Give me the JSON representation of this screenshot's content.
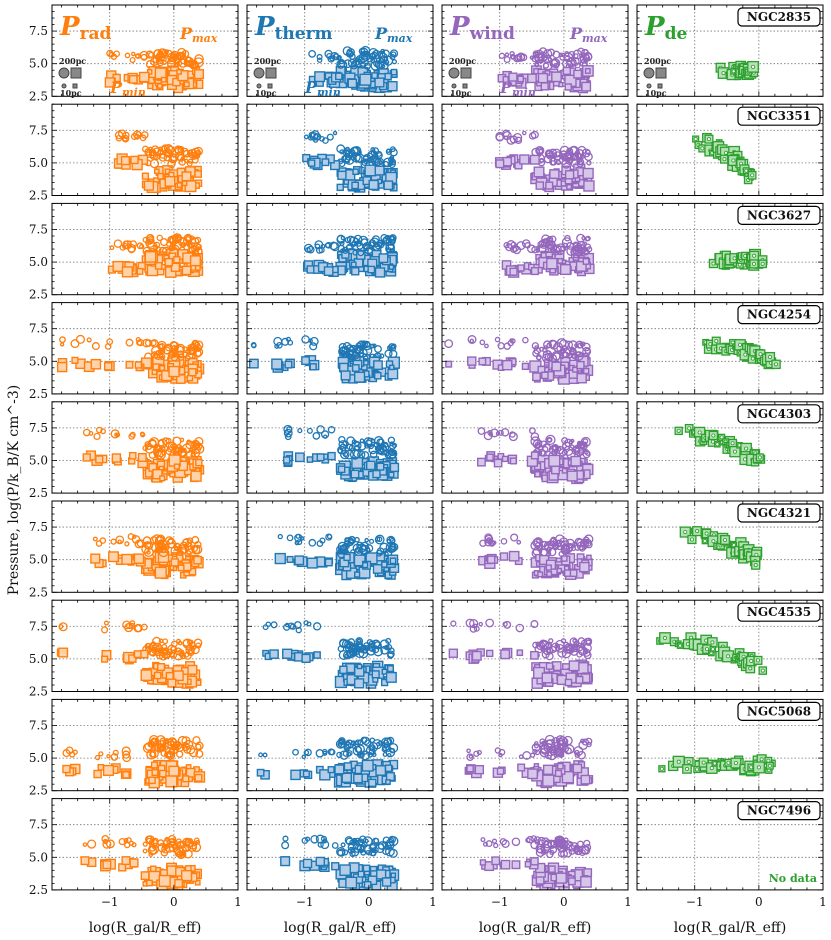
{
  "chart_data": {
    "type": "scatter",
    "rows": 9,
    "cols": 4,
    "xlabel": "log(R_gal/R_eff)",
    "ylabel": "Pressure, log(P/k_B/K cm^-3)",
    "xlim": [
      -1.9,
      1.0
    ],
    "ylim": [
      2.5,
      9.5
    ],
    "xticks": [
      -1,
      0,
      1
    ],
    "yticks": [
      2.5,
      5.0,
      7.5
    ],
    "xtick_labels": [
      "−1",
      "0",
      "1"
    ],
    "ytick_labels": [
      "2.5",
      "5.0",
      "7.5"
    ],
    "grid": "dotted at ticks",
    "columns": [
      {
        "key": "rad",
        "title_main": "P",
        "title_sub": "rad",
        "color": "#ff7f0e",
        "fill": "#ffd2aa"
      },
      {
        "key": "therm",
        "title_main": "P",
        "title_sub": "therm",
        "color": "#1f77b4",
        "fill": "#b3cde8"
      },
      {
        "key": "wind",
        "title_main": "P",
        "title_sub": "wind",
        "color": "#9467bd",
        "fill": "#d6c6ea"
      },
      {
        "key": "de",
        "title_main": "P",
        "title_sub": "de",
        "color": "#2ca02c",
        "fill": "#b6e0b6"
      }
    ],
    "galaxies": [
      "NGC2835",
      "NGC3351",
      "NGC3627",
      "NGC4254",
      "NGC4303",
      "NGC4321",
      "NGC4535",
      "NGC5068",
      "NGC7496"
    ],
    "annotations": {
      "pmax": {
        "main": "P",
        "sub": "max"
      },
      "pmin": {
        "main": "P",
        "sub": "min"
      },
      "legend_200pc": "200pc",
      "legend_10pc": "10pc",
      "no_data": "No data"
    },
    "series_description": "Circles = P_max, squares = P_min; marker size scales with region size (200pc large, 10pc small)",
    "groups": [
      {
        "galaxy": "NGC2835",
        "min_inner": 3.8,
        "max_inner": 5.5,
        "min_outer": 3.8,
        "max_outer": 5.4,
        "x_start": -1.0,
        "de": [
          {
            "x": -0.6,
            "y": 4.4
          },
          {
            "x": -0.1,
            "y": 4.4
          }
        ]
      },
      {
        "galaxy": "NGC3351",
        "min_inner": 5.1,
        "max_inner": 7.0,
        "min_outer": 3.8,
        "max_outer": 5.5,
        "x_start": -1.0,
        "de": [
          {
            "x": -1.0,
            "y": 6.7
          },
          {
            "x": -0.1,
            "y": 3.9
          }
        ]
      },
      {
        "galaxy": "NGC3627",
        "min_inner": 4.5,
        "max_inner": 6.2,
        "min_outer": 4.9,
        "max_outer": 6.3,
        "x_start": -1.0,
        "de": [
          {
            "x": -0.7,
            "y": 5.1
          },
          {
            "x": 0.0,
            "y": 5.2
          }
        ]
      },
      {
        "galaxy": "NGC4254",
        "min_inner": 4.8,
        "max_inner": 6.4,
        "min_outer": 4.3,
        "max_outer": 5.8,
        "x_start": -1.8,
        "de": [
          {
            "x": -0.9,
            "y": 6.4
          },
          {
            "x": 0.2,
            "y": 5.0
          }
        ]
      },
      {
        "galaxy": "NGC4303",
        "min_inner": 5.1,
        "max_inner": 7.1,
        "min_outer": 4.3,
        "max_outer": 6.0,
        "x_start": -1.4,
        "de": [
          {
            "x": -1.2,
            "y": 7.1
          },
          {
            "x": 0.0,
            "y": 5.0
          }
        ]
      },
      {
        "galaxy": "NGC4321",
        "min_inner": 5.0,
        "max_inner": 6.5,
        "min_outer": 4.5,
        "max_outer": 6.0,
        "x_start": -1.4,
        "de": [
          {
            "x": -1.2,
            "y": 7.0
          },
          {
            "x": 0.0,
            "y": 5.0
          }
        ]
      },
      {
        "galaxy": "NGC4535",
        "min_inner": 5.2,
        "max_inner": 7.5,
        "min_outer": 3.8,
        "max_outer": 5.8,
        "x_start": -1.8,
        "de": [
          {
            "x": -1.6,
            "y": 6.6
          },
          {
            "x": 0.0,
            "y": 4.5
          }
        ]
      },
      {
        "galaxy": "NGC5068",
        "min_inner": 4.0,
        "max_inner": 5.3,
        "min_outer": 3.8,
        "max_outer": 5.8,
        "x_start": -1.7,
        "de": [
          {
            "x": -1.5,
            "y": 4.3
          },
          {
            "x": 0.2,
            "y": 4.5
          }
        ]
      },
      {
        "galaxy": "NGC7496",
        "min_inner": 4.5,
        "max_inner": 6.2,
        "min_outer": 3.5,
        "max_outer": 5.8,
        "x_start": -1.4,
        "de": []
      }
    ]
  }
}
